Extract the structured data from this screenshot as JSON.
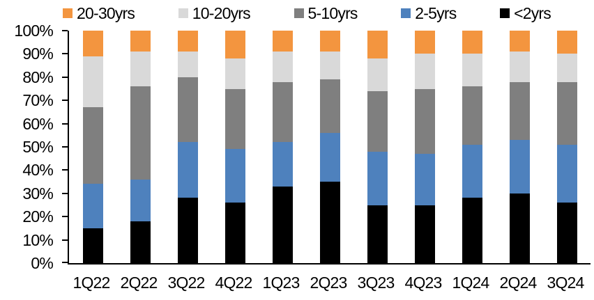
{
  "chart_data": {
    "type": "bar",
    "variant": "100-percent-stacked-column",
    "title": "",
    "categories": [
      "1Q22",
      "2Q22",
      "3Q22",
      "4Q22",
      "1Q23",
      "2Q23",
      "3Q23",
      "4Q23",
      "1Q24",
      "2Q24",
      "3Q24"
    ],
    "series": [
      {
        "name": "<2yrs",
        "color": "#000000",
        "values": [
          15,
          18,
          28,
          26,
          33,
          35,
          25,
          25,
          28,
          30,
          26
        ]
      },
      {
        "name": "2-5yrs",
        "color": "#4E81BD",
        "values": [
          19,
          18,
          24,
          23,
          19,
          21,
          23,
          22,
          23,
          23,
          25
        ]
      },
      {
        "name": "5-10yrs",
        "color": "#7F7F7F",
        "values": [
          33,
          40,
          28,
          26,
          26,
          23,
          26,
          28,
          25,
          25,
          27
        ]
      },
      {
        "name": "10-20yrs",
        "color": "#D9D9D9",
        "values": [
          22,
          15,
          11,
          13,
          13,
          12,
          14,
          15,
          14,
          13,
          12
        ]
      },
      {
        "name": "20-30yrs",
        "color": "#F3953F",
        "values": [
          11,
          9,
          9,
          12,
          9,
          9,
          12,
          10,
          10,
          9,
          10
        ]
      }
    ],
    "stack_order_bottom_to_top": [
      "<2yrs",
      "2-5yrs",
      "5-10yrs",
      "10-20yrs",
      "20-30yrs"
    ],
    "y_axis": {
      "min": 0,
      "max": 100,
      "tick_step": 10,
      "tick_labels": [
        "0%",
        "10%",
        "20%",
        "30%",
        "40%",
        "50%",
        "60%",
        "70%",
        "80%",
        "90%",
        "100%"
      ],
      "grid": false
    },
    "x_axis": {
      "tick_labels": [
        "1Q22",
        "2Q22",
        "3Q22",
        "4Q22",
        "1Q23",
        "2Q23",
        "3Q23",
        "4Q23",
        "1Q24",
        "2Q24",
        "3Q24"
      ]
    },
    "legend": {
      "position": "top",
      "order": [
        "20-30yrs",
        "10-20yrs",
        "5-10yrs",
        "2-5yrs",
        "<2yrs"
      ]
    }
  },
  "colors": {
    "axis": "#000000",
    "background": "#FFFFFF",
    "text": "#000000"
  }
}
